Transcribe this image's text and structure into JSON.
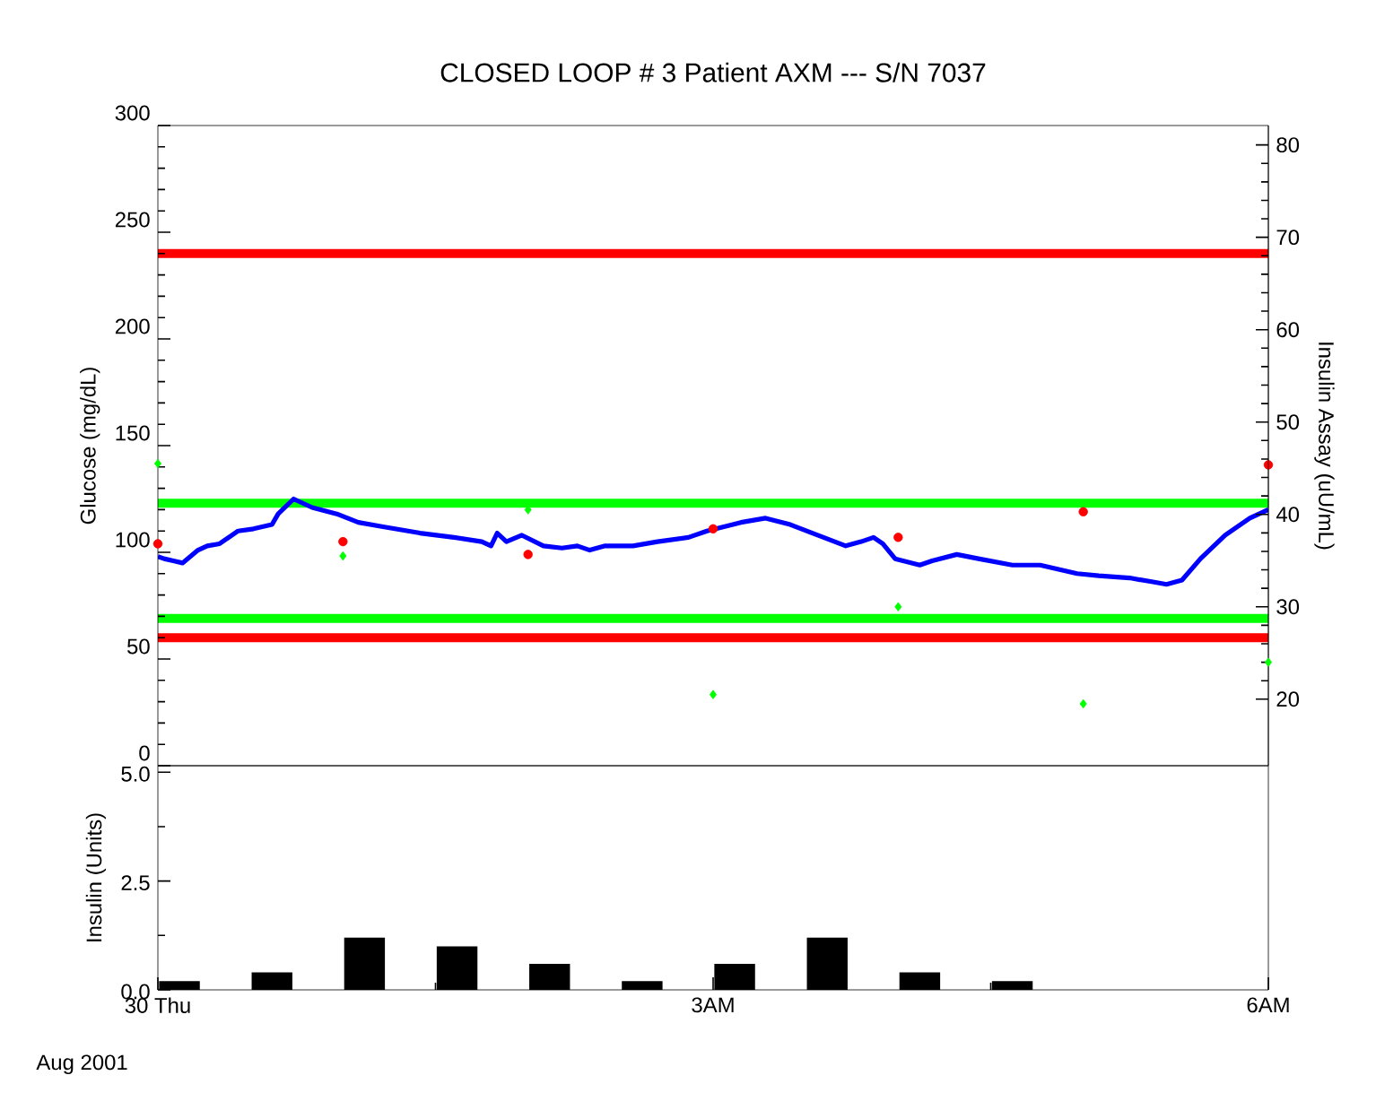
{
  "chart_data": [
    {
      "type": "line",
      "title": "CLOSED LOOP # 3 Patient AXM --- S/N 7037",
      "ylabel": "Glucose (mg/dL)",
      "y2label": "Insulin Assay (uU/mL)",
      "xlim": [
        "2001-08-30T00:00",
        "2001-08-30T06:00"
      ],
      "ylim": [
        0,
        300
      ],
      "yticks": [
        0,
        50,
        100,
        150,
        200,
        250,
        300
      ],
      "y2lim": [
        12.8,
        82.1
      ],
      "y2ticks": [
        20,
        30,
        40,
        50,
        60,
        70,
        80
      ],
      "tick_labels": "y",
      "series": [
        {
          "type": "line",
          "color": "#0000ff",
          "marker": "none",
          "x": [
            "2001-08-30T00:00",
            "2001-08-30T00:02",
            "2001-08-30T00:05",
            "2001-08-30T00:08",
            "2001-08-30T00:13",
            "2001-08-30T00:16",
            "2001-08-30T00:20",
            "2001-08-30T00:26",
            "2001-08-30T00:31",
            "2001-08-30T00:37",
            "2001-08-30T00:39",
            "2001-08-30T00:44",
            "2001-08-30T00:50",
            "2001-08-30T00:58",
            "2001-08-30T01:05",
            "2001-08-30T01:13",
            "2001-08-30T01:25",
            "2001-08-30T01:36",
            "2001-08-30T01:45",
            "2001-08-30T01:48",
            "2001-08-30T01:50",
            "2001-08-30T01:53",
            "2001-08-30T01:58",
            "2001-08-30T02:05",
            "2001-08-30T02:11",
            "2001-08-30T02:16",
            "2001-08-30T02:20",
            "2001-08-30T02:25",
            "2001-08-30T02:34",
            "2001-08-30T02:42",
            "2001-08-30T02:52",
            "2001-08-30T02:58",
            "2001-08-30T03:09",
            "2001-08-30T03:17",
            "2001-08-30T03:25",
            "2001-08-30T03:34",
            "2001-08-30T03:43",
            "2001-08-30T03:48",
            "2001-08-30T03:52",
            "2001-08-30T03:55",
            "2001-08-30T03:59",
            "2001-08-30T04:07",
            "2001-08-30T04:11",
            "2001-08-30T04:19",
            "2001-08-30T04:26",
            "2001-08-30T04:37",
            "2001-08-30T04:46",
            "2001-08-30T04:58",
            "2001-08-30T05:05",
            "2001-08-30T05:15",
            "2001-08-30T05:23",
            "2001-08-30T05:27",
            "2001-08-30T05:32",
            "2001-08-30T05:38",
            "2001-08-30T05:46",
            "2001-08-30T05:54",
            "2001-08-30T06:00"
          ],
          "values": [
            98,
            97,
            96,
            95,
            101,
            103,
            104,
            110,
            111,
            113,
            118,
            125,
            121,
            118,
            114,
            112,
            109,
            107,
            105,
            103,
            109,
            105,
            108,
            103,
            102,
            103,
            101,
            103,
            103,
            105,
            107,
            110,
            114,
            116,
            113,
            108,
            103,
            105,
            107,
            104,
            97,
            94,
            96,
            99,
            97,
            94,
            94,
            90,
            89,
            88,
            86,
            85,
            87,
            97,
            108,
            116,
            120
          ]
        },
        {
          "type": "scatter",
          "color": "#ff0000",
          "marker": "circle",
          "x": [
            "2001-08-30T00:00",
            "2001-08-30T01:00",
            "2001-08-30T02:00",
            "2001-08-30T03:00",
            "2001-08-30T04:00",
            "2001-08-30T05:00",
            "2001-08-30T06:00"
          ],
          "values": [
            104,
            105,
            99,
            111,
            107,
            119,
            141
          ]
        },
        {
          "type": "scatter",
          "color": "#00ff00",
          "marker": "diamond",
          "axis": "y2",
          "x": [
            "2001-08-30T00:00",
            "2001-08-30T01:00",
            "2001-08-30T02:00",
            "2001-08-30T03:00",
            "2001-08-30T04:00",
            "2001-08-30T05:00",
            "2001-08-30T06:00"
          ],
          "values": [
            45.5,
            35.5,
            40.5,
            20.5,
            30,
            19.5,
            24
          ]
        }
      ],
      "ref_lines": [
        {
          "axis": "y",
          "value": 240,
          "color": "#ff0000"
        },
        {
          "axis": "y",
          "value": 60,
          "color": "#ff0000"
        },
        {
          "axis": "y",
          "value": 123,
          "color": "#00ff00"
        },
        {
          "axis": "y",
          "value": 69,
          "color": "#00ff00"
        }
      ]
    },
    {
      "type": "bar",
      "ylabel": "Insulin (Units)",
      "x": [
        "2001-08-30T00:07",
        "2001-08-30T00:37",
        "2001-08-30T01:07",
        "2001-08-30T01:37",
        "2001-08-30T02:07",
        "2001-08-30T02:37",
        "2001-08-30T03:07",
        "2001-08-30T03:37",
        "2001-08-30T04:07",
        "2001-08-30T04:37"
      ],
      "values": [
        0.2,
        0.4,
        1.2,
        1.0,
        0.6,
        0.2,
        0.6,
        1.2,
        0.4,
        0.2
      ],
      "color": "#000000",
      "xlim": [
        "2001-08-30T00:00",
        "2001-08-30T06:00"
      ],
      "xticks": [
        {
          "value": "2001-08-30T00:00",
          "label": "30 Thu"
        },
        {
          "value": "2001-08-30T03:00",
          "label": "3AM"
        },
        {
          "value": "2001-08-30T06:00",
          "label": "6AM"
        }
      ],
      "ylim": [
        0,
        5.15
      ],
      "yticks": [
        {
          "value": 0,
          "label": "0.0"
        },
        {
          "value": 2.5,
          "label": "2.5"
        },
        {
          "value": 5,
          "label": "5.0"
        }
      ],
      "annotations": [
        "Aug 2001"
      ]
    }
  ]
}
